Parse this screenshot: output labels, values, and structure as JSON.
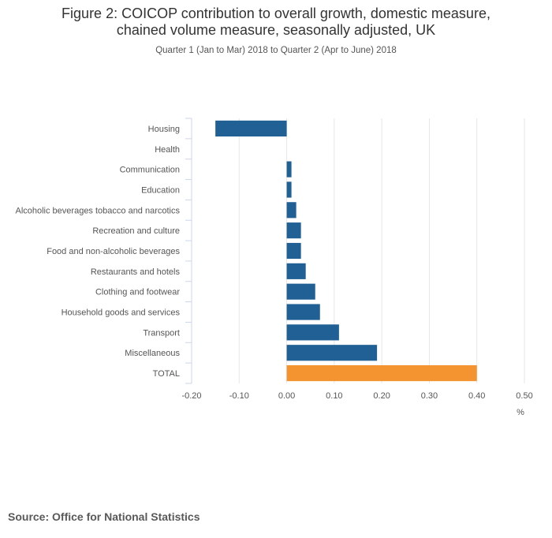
{
  "title_lines": [
    "Figure 2: COICOP contribution to overall growth, domestic measure,",
    "chained volume measure, seasonally adjusted, UK"
  ],
  "subtitle": "Quarter 1 (Jan to Mar) 2018 to Quarter 2 (Apr to June) 2018",
  "source": "Source: Office for National Statistics",
  "colors": {
    "bar": "#206095",
    "total": "#F39431",
    "grid": "#e6e6e6",
    "axis": "#ccd6eb"
  },
  "chart_data": {
    "type": "bar",
    "orientation": "horizontal",
    "categories": [
      "Housing",
      "Health",
      "Communication",
      "Education",
      "Alcoholic beverages tobacco and narcotics",
      "Recreation and culture",
      "Food and non-alcoholic beverages",
      "Restaurants and hotels",
      "Clothing and footwear",
      "Household goods and services",
      "Transport",
      "Miscellaneous",
      "TOTAL"
    ],
    "values": [
      -0.15,
      0.0,
      0.01,
      0.01,
      0.02,
      0.03,
      0.03,
      0.04,
      0.06,
      0.07,
      0.11,
      0.19,
      0.4
    ],
    "xlim": [
      -0.2,
      0.5
    ],
    "xticks": [
      "-0.20",
      "-0.10",
      "0.00",
      "0.10",
      "0.20",
      "0.30",
      "0.40",
      "0.50"
    ],
    "xlabel": "%",
    "highlight_category": "TOTAL",
    "grid": true
  }
}
